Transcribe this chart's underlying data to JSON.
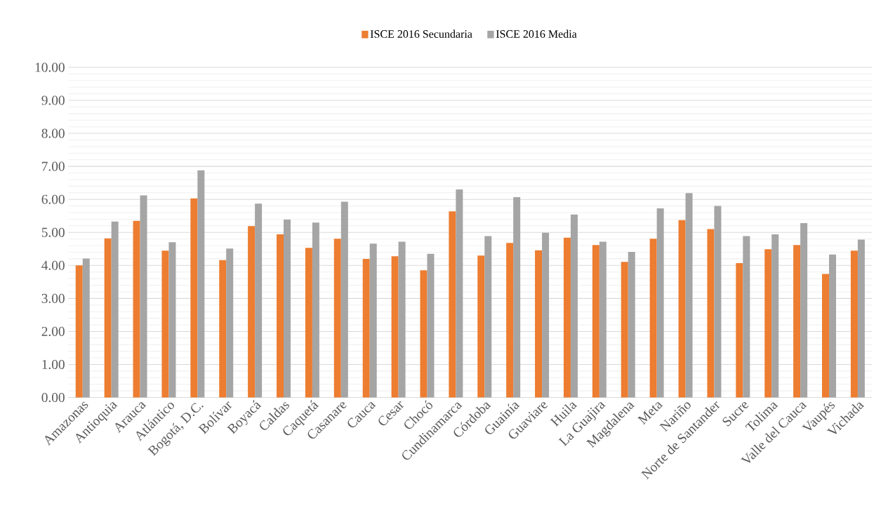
{
  "chart_data": {
    "type": "bar",
    "categories": [
      "Amazonas",
      "Antioquia",
      "Arauca",
      "Atlántico",
      "Bogotá, D.C.",
      "Bolívar",
      "Boyacá",
      "Caldas",
      "Caquetá",
      "Casanare",
      "Cauca",
      "Cesar",
      "Chocó",
      "Cundinamarca",
      "Córdoba",
      "Guainía",
      "Guaviare",
      "Huila",
      "La Guajira",
      "Magdalena",
      "Meta",
      "Nariño",
      "Norte de Santander",
      "Sucre",
      "Tolima",
      "Valle del Cauca",
      "Vaupés",
      "Vichada"
    ],
    "series": [
      {
        "name": "ISCE 2016 Secundaria",
        "color": "#ed7d31",
        "values": [
          4.0,
          4.82,
          5.35,
          4.45,
          6.03,
          4.16,
          5.19,
          4.94,
          4.53,
          4.81,
          4.2,
          4.28,
          3.85,
          5.64,
          4.3,
          4.68,
          4.46,
          4.84,
          4.62,
          4.11,
          4.81,
          5.37,
          5.1,
          4.07,
          4.49,
          4.62,
          3.74,
          4.45
        ]
      },
      {
        "name": "ISCE 2016 Media",
        "color": "#a5a5a5",
        "values": [
          4.21,
          5.33,
          6.12,
          4.7,
          6.88,
          4.51,
          5.87,
          5.39,
          5.3,
          5.93,
          4.66,
          4.72,
          4.35,
          6.3,
          4.89,
          6.07,
          4.99,
          5.54,
          4.72,
          4.41,
          5.73,
          6.19,
          5.8,
          4.89,
          4.94,
          5.28,
          4.33,
          4.78
        ]
      }
    ],
    "ylim": [
      0,
      10
    ],
    "yticks": [
      {
        "value": 0,
        "label": "0.00"
      },
      {
        "value": 1,
        "label": "1.00"
      },
      {
        "value": 2,
        "label": "2.00"
      },
      {
        "value": 3,
        "label": "3.00"
      },
      {
        "value": 4,
        "label": "4.00"
      },
      {
        "value": 5,
        "label": "5.00"
      },
      {
        "value": 6,
        "label": "6.00"
      },
      {
        "value": 7,
        "label": "7.00"
      },
      {
        "value": 8,
        "label": "8.00"
      },
      {
        "value": 9,
        "label": "9.00"
      },
      {
        "value": 10,
        "label": "10.00"
      }
    ],
    "grid": "y",
    "legend": "top"
  }
}
